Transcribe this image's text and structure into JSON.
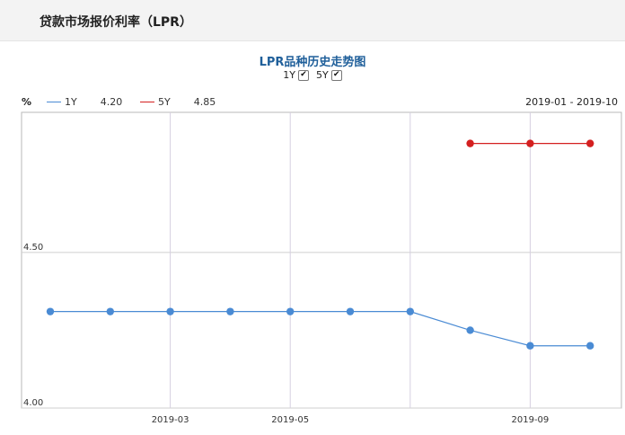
{
  "page": {
    "title": "贷款市场报价利率（LPR）"
  },
  "chart_data": {
    "type": "line",
    "title": "LPR品种历史走势图",
    "toggles": [
      {
        "label": "1Y",
        "checked": true
      },
      {
        "label": "5Y",
        "checked": true
      }
    ],
    "unit": "%",
    "range_label": "2019-01 - 2019-10",
    "ylim": [
      4.0,
      4.95
    ],
    "y_ticks": [
      "4.00",
      "4.50"
    ],
    "x_ticks": [
      "2019-03",
      "2019-05",
      "2019-09"
    ],
    "grid": true,
    "series": [
      {
        "name": "1Y",
        "current": "4.20",
        "color": "#4a8bd4",
        "points": [
          {
            "x": "2019-01",
            "y": 4.31
          },
          {
            "x": "2019-02",
            "y": 4.31
          },
          {
            "x": "2019-03",
            "y": 4.31
          },
          {
            "x": "2019-04",
            "y": 4.31
          },
          {
            "x": "2019-05",
            "y": 4.31
          },
          {
            "x": "2019-06",
            "y": 4.31
          },
          {
            "x": "2019-07",
            "y": 4.31
          },
          {
            "x": "2019-08",
            "y": 4.25
          },
          {
            "x": "2019-09",
            "y": 4.2
          },
          {
            "x": "2019-10",
            "y": 4.2
          }
        ]
      },
      {
        "name": "5Y",
        "current": "4.85",
        "color": "#d42020",
        "points": [
          {
            "x": "2019-08",
            "y": 4.85
          },
          {
            "x": "2019-09",
            "y": 4.85
          },
          {
            "x": "2019-10",
            "y": 4.85
          }
        ]
      }
    ]
  }
}
